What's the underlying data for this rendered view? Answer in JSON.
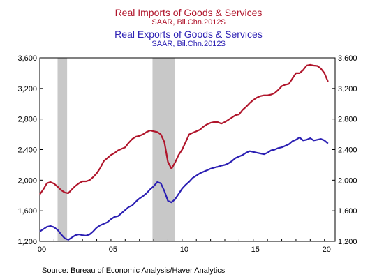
{
  "legend": {
    "imports": {
      "name": "Real Imports of Goods & Services",
      "unit": "SAAR, Bil.Chn.2012$",
      "color": "#b0152b"
    },
    "exports": {
      "name": "Real Exports of Goods & Services",
      "unit": "SAAR, Bil.Chn.2012$",
      "color": "#2b1fb3"
    }
  },
  "source": "Source:  Bureau of Economic Analysis/Haver Analytics",
  "chart_data": {
    "type": "line",
    "title": "",
    "xlabel": "",
    "ylabel": "",
    "xlim": [
      2000.0,
      2020.75
    ],
    "ylim": [
      1200,
      3600
    ],
    "y_ticks": [
      1200,
      1600,
      2000,
      2400,
      2800,
      3200,
      3600
    ],
    "y_tick_labels": [
      "1,200",
      "1,600",
      "2,000",
      "2,400",
      "2,800",
      "3,200",
      "3,600"
    ],
    "x_ticks": [
      2000,
      2005,
      2010,
      2015,
      2020
    ],
    "x_tick_labels": [
      "00",
      "05",
      "10",
      "15",
      "20"
    ],
    "recession_shading": [
      [
        2001.25,
        2001.92
      ],
      [
        2007.92,
        2009.5
      ]
    ],
    "recession_color": "#c8c8c8",
    "grid": false,
    "series": [
      {
        "name": "Real Imports of Goods & Services",
        "color": "#b0152b",
        "points": [
          [
            2000.0,
            1815
          ],
          [
            2000.25,
            1880
          ],
          [
            2000.5,
            1960
          ],
          [
            2000.75,
            1975
          ],
          [
            2001.0,
            1955
          ],
          [
            2001.25,
            1915
          ],
          [
            2001.5,
            1870
          ],
          [
            2001.75,
            1840
          ],
          [
            2002.0,
            1830
          ],
          [
            2002.25,
            1880
          ],
          [
            2002.5,
            1925
          ],
          [
            2002.75,
            1960
          ],
          [
            2003.0,
            1985
          ],
          [
            2003.25,
            1985
          ],
          [
            2003.5,
            2000
          ],
          [
            2003.75,
            2040
          ],
          [
            2004.0,
            2090
          ],
          [
            2004.25,
            2160
          ],
          [
            2004.5,
            2250
          ],
          [
            2004.75,
            2290
          ],
          [
            2005.0,
            2330
          ],
          [
            2005.25,
            2355
          ],
          [
            2005.5,
            2390
          ],
          [
            2005.75,
            2410
          ],
          [
            2006.0,
            2430
          ],
          [
            2006.25,
            2490
          ],
          [
            2006.5,
            2540
          ],
          [
            2006.75,
            2570
          ],
          [
            2007.0,
            2580
          ],
          [
            2007.25,
            2600
          ],
          [
            2007.5,
            2630
          ],
          [
            2007.75,
            2650
          ],
          [
            2008.0,
            2640
          ],
          [
            2008.25,
            2630
          ],
          [
            2008.5,
            2600
          ],
          [
            2008.75,
            2500
          ],
          [
            2009.0,
            2240
          ],
          [
            2009.25,
            2150
          ],
          [
            2009.5,
            2230
          ],
          [
            2009.75,
            2330
          ],
          [
            2010.0,
            2400
          ],
          [
            2010.25,
            2500
          ],
          [
            2010.5,
            2600
          ],
          [
            2010.75,
            2620
          ],
          [
            2011.0,
            2640
          ],
          [
            2011.25,
            2660
          ],
          [
            2011.5,
            2700
          ],
          [
            2011.75,
            2730
          ],
          [
            2012.0,
            2750
          ],
          [
            2012.25,
            2760
          ],
          [
            2012.5,
            2760
          ],
          [
            2012.75,
            2740
          ],
          [
            2013.0,
            2760
          ],
          [
            2013.25,
            2790
          ],
          [
            2013.5,
            2820
          ],
          [
            2013.75,
            2850
          ],
          [
            2014.0,
            2860
          ],
          [
            2014.25,
            2920
          ],
          [
            2014.5,
            2960
          ],
          [
            2014.75,
            3010
          ],
          [
            2015.0,
            3050
          ],
          [
            2015.25,
            3080
          ],
          [
            2015.5,
            3100
          ],
          [
            2015.75,
            3110
          ],
          [
            2016.0,
            3110
          ],
          [
            2016.25,
            3120
          ],
          [
            2016.5,
            3140
          ],
          [
            2016.75,
            3180
          ],
          [
            2017.0,
            3230
          ],
          [
            2017.25,
            3250
          ],
          [
            2017.5,
            3260
          ],
          [
            2017.75,
            3330
          ],
          [
            2018.0,
            3400
          ],
          [
            2018.25,
            3400
          ],
          [
            2018.5,
            3440
          ],
          [
            2018.75,
            3500
          ],
          [
            2019.0,
            3510
          ],
          [
            2019.25,
            3500
          ],
          [
            2019.5,
            3495
          ],
          [
            2019.75,
            3460
          ],
          [
            2020.0,
            3400
          ],
          [
            2020.25,
            3290
          ]
        ]
      },
      {
        "name": "Real Exports of Goods & Services",
        "color": "#2b1fb3",
        "points": [
          [
            2000.0,
            1330
          ],
          [
            2000.25,
            1360
          ],
          [
            2000.5,
            1390
          ],
          [
            2000.75,
            1400
          ],
          [
            2001.0,
            1385
          ],
          [
            2001.25,
            1350
          ],
          [
            2001.5,
            1290
          ],
          [
            2001.75,
            1240
          ],
          [
            2002.0,
            1220
          ],
          [
            2002.25,
            1250
          ],
          [
            2002.5,
            1280
          ],
          [
            2002.75,
            1290
          ],
          [
            2003.0,
            1280
          ],
          [
            2003.25,
            1275
          ],
          [
            2003.5,
            1290
          ],
          [
            2003.75,
            1330
          ],
          [
            2004.0,
            1380
          ],
          [
            2004.25,
            1410
          ],
          [
            2004.5,
            1430
          ],
          [
            2004.75,
            1450
          ],
          [
            2005.0,
            1490
          ],
          [
            2005.25,
            1520
          ],
          [
            2005.5,
            1530
          ],
          [
            2005.75,
            1570
          ],
          [
            2006.0,
            1610
          ],
          [
            2006.25,
            1650
          ],
          [
            2006.5,
            1670
          ],
          [
            2006.75,
            1720
          ],
          [
            2007.0,
            1760
          ],
          [
            2007.25,
            1790
          ],
          [
            2007.5,
            1830
          ],
          [
            2007.75,
            1880
          ],
          [
            2008.0,
            1920
          ],
          [
            2008.25,
            1975
          ],
          [
            2008.5,
            1960
          ],
          [
            2008.75,
            1860
          ],
          [
            2009.0,
            1730
          ],
          [
            2009.25,
            1710
          ],
          [
            2009.5,
            1750
          ],
          [
            2009.75,
            1820
          ],
          [
            2010.0,
            1890
          ],
          [
            2010.25,
            1940
          ],
          [
            2010.5,
            1980
          ],
          [
            2010.75,
            2030
          ],
          [
            2011.0,
            2060
          ],
          [
            2011.25,
            2090
          ],
          [
            2011.5,
            2110
          ],
          [
            2011.75,
            2130
          ],
          [
            2012.0,
            2150
          ],
          [
            2012.25,
            2165
          ],
          [
            2012.5,
            2175
          ],
          [
            2012.75,
            2190
          ],
          [
            2013.0,
            2200
          ],
          [
            2013.25,
            2220
          ],
          [
            2013.5,
            2250
          ],
          [
            2013.75,
            2290
          ],
          [
            2014.0,
            2310
          ],
          [
            2014.25,
            2330
          ],
          [
            2014.5,
            2360
          ],
          [
            2014.75,
            2380
          ],
          [
            2015.0,
            2370
          ],
          [
            2015.25,
            2360
          ],
          [
            2015.5,
            2350
          ],
          [
            2015.75,
            2340
          ],
          [
            2016.0,
            2360
          ],
          [
            2016.25,
            2390
          ],
          [
            2016.5,
            2400
          ],
          [
            2016.75,
            2420
          ],
          [
            2017.0,
            2430
          ],
          [
            2017.25,
            2450
          ],
          [
            2017.5,
            2470
          ],
          [
            2017.75,
            2510
          ],
          [
            2018.0,
            2530
          ],
          [
            2018.25,
            2560
          ],
          [
            2018.5,
            2520
          ],
          [
            2018.75,
            2530
          ],
          [
            2019.0,
            2550
          ],
          [
            2019.25,
            2520
          ],
          [
            2019.5,
            2530
          ],
          [
            2019.75,
            2540
          ],
          [
            2020.0,
            2520
          ],
          [
            2020.25,
            2480
          ]
        ]
      }
    ]
  }
}
